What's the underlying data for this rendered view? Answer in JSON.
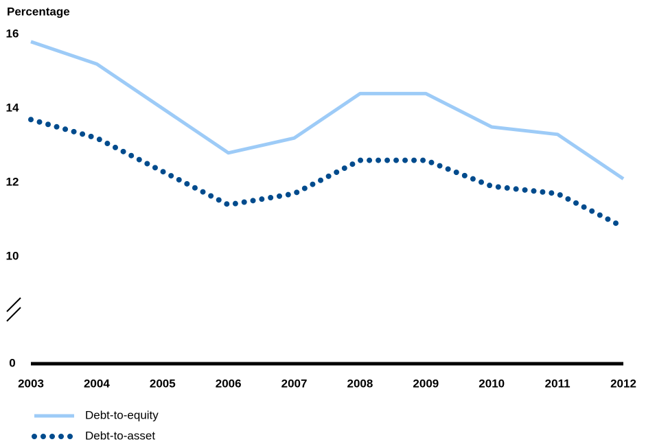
{
  "chart_data": {
    "type": "line",
    "y_axis_label": "Percentage",
    "x": [
      2003,
      2004,
      2005,
      2006,
      2007,
      2008,
      2009,
      2010,
      2011,
      2012
    ],
    "xlim": [
      2003,
      2012
    ],
    "xticks": [
      2003,
      2004,
      2005,
      2006,
      2007,
      2008,
      2009,
      2010,
      2011,
      2012
    ],
    "series": [
      {
        "name": "Debt-to-equity",
        "color": "#9dcbf7",
        "style": "solid",
        "values": [
          15.8,
          15.2,
          14.0,
          12.8,
          13.2,
          14.4,
          14.4,
          13.5,
          13.3,
          12.1
        ]
      },
      {
        "name": "Debt-to-asset",
        "color": "#004b8d",
        "style": "dotted",
        "values": [
          13.7,
          13.2,
          12.3,
          11.4,
          11.7,
          12.6,
          12.6,
          11.9,
          11.7,
          10.8
        ]
      }
    ],
    "ylim": [
      0,
      16
    ],
    "yticks": [
      0,
      10,
      12,
      14,
      16
    ],
    "y_axis_break": true,
    "grid": false,
    "legend": "bottom-left"
  }
}
